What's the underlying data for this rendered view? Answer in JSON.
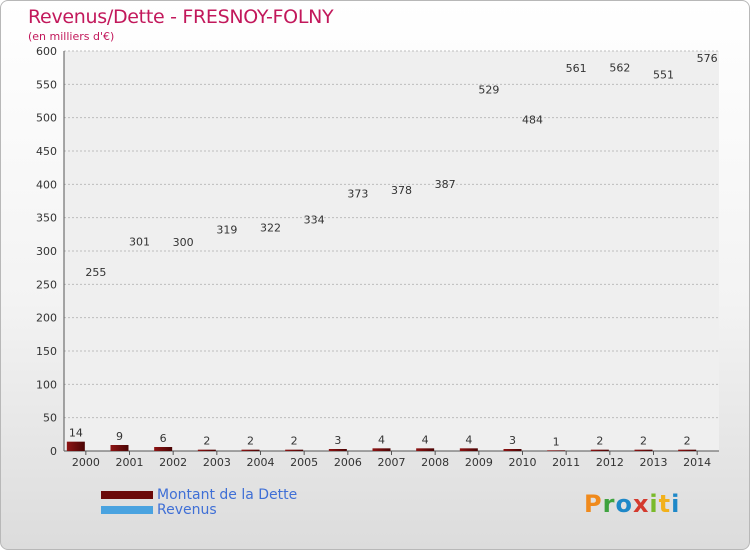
{
  "title": "Revenus/Dette - FRESNOY-FOLNY",
  "subtitle": "(en milliers d'€)",
  "colors": {
    "dette": "#6b0a0a",
    "revenus": "#4aa3e0",
    "title": "#c2185b",
    "legend_text": "#3f6fd6"
  },
  "legend": [
    {
      "label": "Montant de la Dette",
      "color": "#6b0a0a"
    },
    {
      "label": "Revenus",
      "color": "#4aa3e0"
    }
  ],
  "logo": {
    "p": "P",
    "r": "r",
    "o": "o",
    "x": "x",
    "i": "i",
    "t": "t",
    "i2": "i"
  },
  "chart_data": {
    "type": "bar",
    "title": "Revenus/Dette - FRESNOY-FOLNY",
    "subtitle": "(en milliers d'€)",
    "categories": [
      "2000",
      "2001",
      "2002",
      "2003",
      "2004",
      "2005",
      "2006",
      "2007",
      "2008",
      "2009",
      "2010",
      "2011",
      "2012",
      "2013",
      "2014"
    ],
    "series": [
      {
        "name": "Montant de la Dette",
        "values": [
          14,
          9,
          6,
          2,
          2,
          2,
          3,
          4,
          4,
          4,
          3,
          1,
          2,
          2,
          2
        ]
      },
      {
        "name": "Revenus",
        "values": [
          255,
          301,
          300,
          319,
          322,
          334,
          373,
          378,
          387,
          529,
          484,
          561,
          562,
          551,
          576
        ]
      }
    ],
    "ylim": [
      0,
      600
    ],
    "yticks": [
      0,
      50,
      100,
      150,
      200,
      250,
      300,
      350,
      400,
      450,
      500,
      550,
      600
    ],
    "grid": true,
    "legend_position": "bottom-left"
  }
}
